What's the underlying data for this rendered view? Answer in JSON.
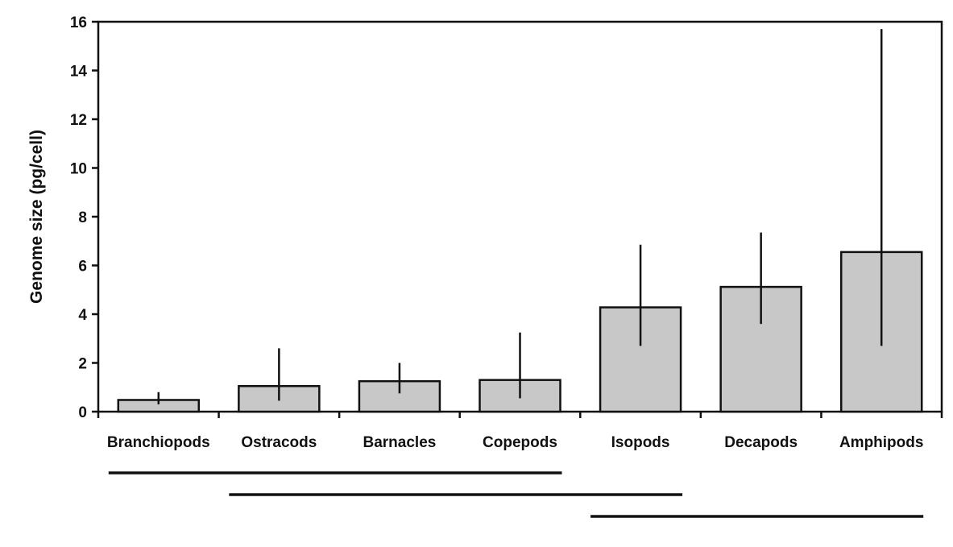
{
  "chart_data": {
    "type": "bar",
    "categories": [
      "Branchiopods",
      "Ostracods",
      "Barnacles",
      "Copepods",
      "Isopods",
      "Decapods",
      "Amphipods"
    ],
    "values": [
      0.48,
      1.05,
      1.25,
      1.3,
      4.28,
      5.12,
      6.55
    ],
    "error_ranges": [
      [
        0.3,
        0.8
      ],
      [
        0.45,
        2.6
      ],
      [
        0.75,
        2.0
      ],
      [
        0.55,
        3.25
      ],
      [
        2.7,
        6.85
      ],
      [
        3.6,
        7.35
      ],
      [
        2.7,
        15.7
      ]
    ],
    "grouping_lines": [
      {
        "from": "Branchiopods",
        "to": "Copepods"
      },
      {
        "from": "Ostracods",
        "to": "Isopods"
      },
      {
        "from": "Isopods",
        "to": "Amphipods"
      }
    ],
    "title": "",
    "xlabel": "",
    "ylabel": "Genome size (pg/cell)",
    "ylim": [
      0,
      16
    ],
    "yticks": [
      0,
      2,
      4,
      6,
      8,
      10,
      12,
      14,
      16
    ],
    "grid": false,
    "legend": "none",
    "bar_color": "#c8c8c8",
    "edge_color": "#111111"
  }
}
